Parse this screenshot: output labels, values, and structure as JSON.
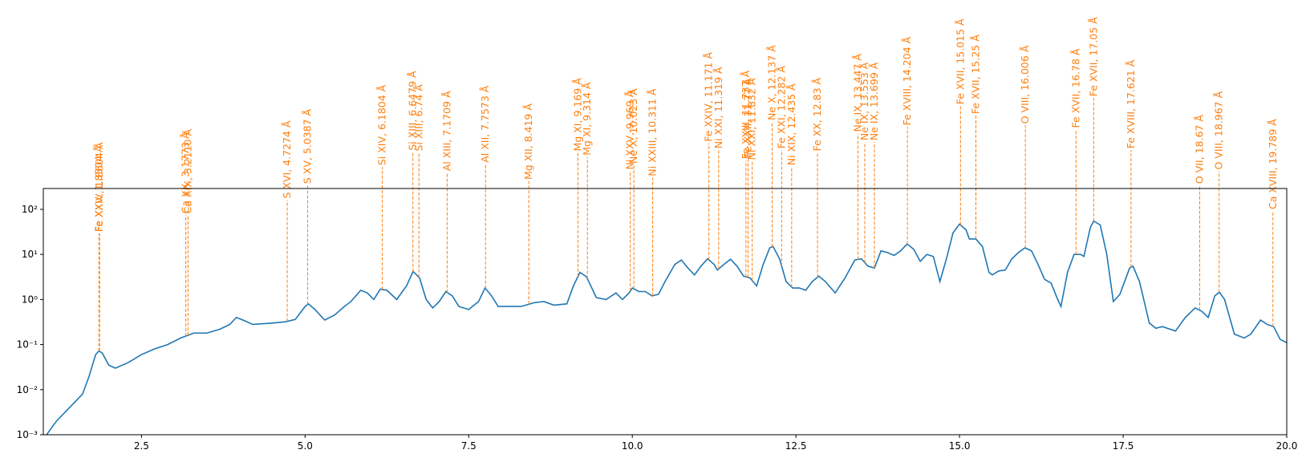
{
  "chart_data": {
    "type": "line",
    "color": "#1f77b4",
    "line_color": "#ff7f0e",
    "log_y": true,
    "xlim": [
      1,
      20
    ],
    "ylim": [
      0.001,
      290
    ],
    "xticks": [
      2.5,
      {
        "value": 5,
        "label": "5.0"
      },
      7.5,
      {
        "value": 10,
        "label": "10.0"
      },
      12.5,
      {
        "value": 15,
        "label": "15.0"
      },
      17.5,
      {
        "value": 20,
        "label": "20.0"
      }
    ],
    "yticks": [
      {
        "value": 0.001,
        "label": "10⁻³"
      },
      {
        "value": 0.01,
        "label": "10⁻²"
      },
      {
        "value": 0.1,
        "label": "10⁻¹"
      },
      {
        "value": 1,
        "label": "10⁰"
      },
      {
        "value": 10,
        "label": "10¹"
      },
      {
        "value": 100,
        "label": "10²"
      }
    ],
    "x": [
      1.05,
      1.2,
      1.4,
      1.6,
      1.7,
      1.8,
      1.85,
      1.9,
      2.0,
      2.1,
      2.3,
      2.5,
      2.7,
      2.9,
      3.1,
      3.3,
      3.5,
      3.7,
      3.85,
      3.95,
      4.05,
      4.2,
      4.5,
      4.7,
      4.85,
      5.0,
      5.05,
      5.15,
      5.3,
      5.45,
      5.6,
      5.7,
      5.85,
      5.95,
      6.05,
      6.15,
      6.25,
      6.4,
      6.55,
      6.65,
      6.75,
      6.85,
      6.95,
      7.05,
      7.15,
      7.25,
      7.35,
      7.5,
      7.65,
      7.75,
      7.85,
      7.95,
      8.1,
      8.3,
      8.5,
      8.65,
      8.8,
      9.0,
      9.1,
      9.2,
      9.3,
      9.45,
      9.6,
      9.75,
      9.85,
      9.95,
      10.0,
      10.1,
      10.2,
      10.3,
      10.4,
      10.5,
      10.65,
      10.75,
      10.85,
      10.95,
      11.05,
      11.15,
      11.25,
      11.3,
      11.4,
      11.5,
      11.6,
      11.7,
      11.8,
      11.9,
      12.0,
      12.1,
      12.15,
      12.25,
      12.35,
      12.45,
      12.55,
      12.65,
      12.75,
      12.85,
      12.95,
      13.1,
      13.25,
      13.4,
      13.5,
      13.6,
      13.7,
      13.8,
      13.9,
      14.0,
      14.1,
      14.2,
      14.3,
      14.4,
      14.5,
      14.6,
      14.7,
      14.8,
      14.9,
      15.0,
      15.1,
      15.15,
      15.25,
      15.35,
      15.45,
      15.5,
      15.6,
      15.7,
      15.8,
      15.9,
      16.0,
      16.1,
      16.2,
      16.3,
      16.4,
      16.5,
      16.55,
      16.65,
      16.75,
      16.85,
      16.9,
      17.0,
      17.05,
      17.15,
      17.25,
      17.35,
      17.45,
      17.6,
      17.65,
      17.75,
      17.9,
      18.0,
      18.1,
      18.3,
      18.45,
      18.6,
      18.7,
      18.8,
      18.9,
      18.97,
      19.05,
      19.2,
      19.35,
      19.45,
      19.6,
      19.7,
      19.8,
      19.9,
      20.0
    ],
    "values": [
      0.001,
      0.002,
      0.004,
      0.008,
      0.02,
      0.06,
      0.072,
      0.065,
      0.035,
      0.03,
      0.04,
      0.06,
      0.08,
      0.1,
      0.14,
      0.18,
      0.18,
      0.22,
      0.28,
      0.4,
      0.35,
      0.28,
      0.3,
      0.32,
      0.36,
      0.7,
      0.8,
      0.6,
      0.35,
      0.45,
      0.7,
      0.9,
      1.6,
      1.4,
      1.0,
      1.7,
      1.6,
      1.0,
      2.0,
      4.2,
      3.0,
      1.0,
      0.65,
      0.9,
      1.5,
      1.2,
      0.7,
      0.6,
      0.9,
      1.8,
      1.2,
      0.7,
      0.7,
      0.7,
      0.85,
      0.9,
      0.75,
      0.8,
      2.0,
      4.0,
      3.2,
      1.1,
      1.0,
      1.4,
      1.0,
      1.4,
      1.8,
      1.5,
      1.5,
      1.2,
      1.3,
      2.5,
      6.0,
      7.5,
      5.0,
      3.5,
      5.5,
      8.0,
      6.0,
      4.5,
      6.0,
      7.8,
      5.5,
      3.3,
      3.0,
      2.0,
      6.0,
      14,
      15,
      8,
      2.5,
      1.8,
      1.8,
      1.6,
      2.5,
      3.3,
      2.5,
      1.4,
      3,
      7.5,
      8,
      5.5,
      5,
      12,
      11,
      9.5,
      12,
      17,
      13,
      7,
      10,
      9,
      2.5,
      8,
      30,
      47,
      35,
      22,
      22,
      15,
      4,
      3.5,
      4.3,
      4.5,
      8,
      11,
      14,
      12,
      6,
      2.8,
      2.3,
      1.0,
      0.7,
      4.0,
      10,
      10,
      9,
      40,
      55,
      45,
      10,
      0.9,
      1.3,
      5,
      5.5,
      2.5,
      0.3,
      0.23,
      0.25,
      0.2,
      0.4,
      0.65,
      0.55,
      0.4,
      1.2,
      1.45,
      1.0,
      0.17,
      0.14,
      0.17,
      0.35,
      0.28,
      0.25,
      0.13,
      0.11
    ],
    "lines": [
      {
        "wavelength": 1.85,
        "label": "Fe XXV, 1.8504 Å",
        "y": 29
      },
      {
        "wavelength": 1.86,
        "label": "Fe XXIV, 1.8604 Å",
        "y": 29
      },
      {
        "wavelength": 3.1773,
        "label": "Ca XX, 3.1773 Å",
        "y": 74
      },
      {
        "wavelength": 3.211,
        "label": "Ca XIX, 3.2110 Å",
        "y": 74
      },
      {
        "wavelength": 4.7274,
        "label": "S XVI, 4.7274 Å",
        "y": 160
      },
      {
        "wavelength": 5.0387,
        "label": "S XV, 5.0387 Å",
        "y": 340
      },
      {
        "wavelength": 6.1804,
        "label": "Si XIV, 6.1804 Å",
        "y": 870
      },
      {
        "wavelength": 6.6479,
        "label": "Si XIII, 6.6479 Å",
        "y": 1860
      },
      {
        "wavelength": 6.74,
        "label": "Si XIII, 6.74 Å",
        "y": 1800
      },
      {
        "wavelength": 7.1709,
        "label": "Al XIII, 7.1709 Å",
        "y": 650
      },
      {
        "wavelength": 7.7573,
        "label": "Al XII, 7.7573 Å",
        "y": 1000
      },
      {
        "wavelength": 8.419,
        "label": "Mg XII, 8.419 Å",
        "y": 420
      },
      {
        "wavelength": 9.169,
        "label": "Mg XI, 9.169 Å",
        "y": 1800
      },
      {
        "wavelength": 9.314,
        "label": "Mg XI, 9.314 Å",
        "y": 1450
      },
      {
        "wavelength": 9.969,
        "label": "Ni XXV, 9.969 Å",
        "y": 700
      },
      {
        "wavelength": 10.023,
        "label": "Ne X, 10.023 Å",
        "y": 950
      },
      {
        "wavelength": 10.311,
        "label": "Ni XXIII, 10.311 Å",
        "y": 500
      },
      {
        "wavelength": 11.171,
        "label": "Fe XXIV, 11.171 Å",
        "y": 2900
      },
      {
        "wavelength": 11.319,
        "label": "Ni XXI, 11.319 Å",
        "y": 2050
      },
      {
        "wavelength": 11.737,
        "label": "Fe XXIII, 11.737 Å",
        "y": 1200
      },
      {
        "wavelength": 11.77,
        "label": "Fe XXII, 11.77 Å",
        "y": 1300
      },
      {
        "wavelength": 11.832,
        "label": "Ni XXI, 11.832 Å",
        "y": 1150
      },
      {
        "wavelength": 12.137,
        "label": "Ne X, 12.137 Å",
        "y": 8700
      },
      {
        "wavelength": 12.282,
        "label": "Fe XXI, 12.282 Å",
        "y": 2050
      },
      {
        "wavelength": 12.435,
        "label": "Ni XIX, 12.435 Å",
        "y": 870
      },
      {
        "wavelength": 12.83,
        "label": "Fe XX, 12.83 Å",
        "y": 1800
      },
      {
        "wavelength": 13.447,
        "label": "Ne IX, 13.447 Å",
        "y": 4800
      },
      {
        "wavelength": 13.553,
        "label": "Ne IX, 13.553 Å",
        "y": 3100
      },
      {
        "wavelength": 13.699,
        "label": "Ne IX, 13.699 Å",
        "y": 3100
      },
      {
        "wavelength": 14.204,
        "label": "Fe XVIII, 14.204 Å",
        "y": 6700
      },
      {
        "wavelength": 15.015,
        "label": "Fe XVII, 15.015 Å",
        "y": 19500
      },
      {
        "wavelength": 15.25,
        "label": "Fe XVII, 15.25 Å",
        "y": 12000
      },
      {
        "wavelength": 16.006,
        "label": "O VIII, 16.006 Å",
        "y": 7300
      },
      {
        "wavelength": 16.78,
        "label": "Fe XVII, 16.78 Å",
        "y": 5900
      },
      {
        "wavelength": 17.05,
        "label": "Fe XVII, 17.05 Å",
        "y": 29500
      },
      {
        "wavelength": 17.621,
        "label": "Fe XVIII, 17.621 Å",
        "y": 2050
      },
      {
        "wavelength": 18.67,
        "label": "O VII, 18.67 Å",
        "y": 340
      },
      {
        "wavelength": 18.967,
        "label": "O VIII, 18.967 Å",
        "y": 700
      },
      {
        "wavelength": 19.789,
        "label": "Ca XVIII, 19.789 Å",
        "y": 92
      }
    ]
  }
}
